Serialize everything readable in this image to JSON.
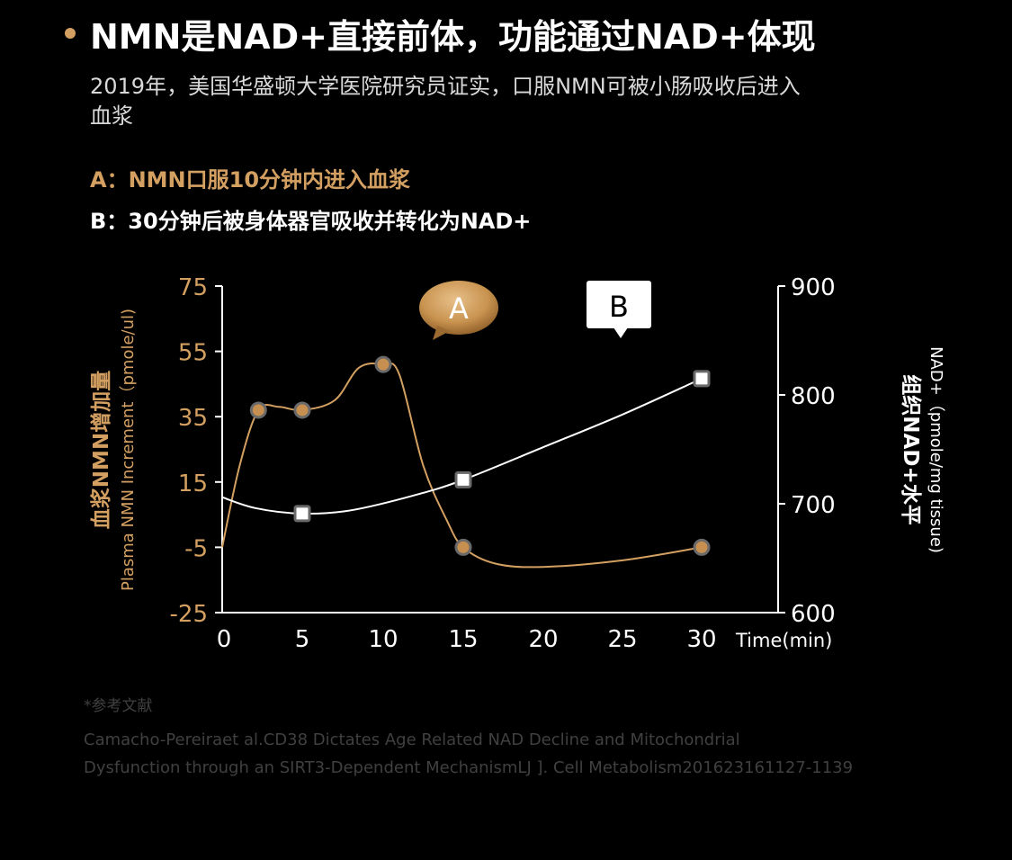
{
  "header": {
    "title": "NMN是NAD+直接前体，功能通过NAD+体现",
    "intro_line1": "2019年，美国华盛顿大学医院研究员证实，口服NMN可被小肠吸收后进入",
    "intro_line2": "血浆"
  },
  "notes": {
    "a": "A：NMN口服10分钟内进入血浆",
    "b": "B：30分钟后被身体器官吸收并转化为NAD+"
  },
  "chart_data": {
    "type": "line",
    "x_axis": {
      "label": "Time(min)",
      "ticks": [
        "0",
        "5",
        "10",
        "15",
        "20",
        "25",
        "30"
      ],
      "range": [
        0,
        33
      ]
    },
    "y_left": {
      "label_cn": "血浆NMN增加量",
      "label_en": "Plasma NMN Increment（pmole/ul)",
      "ticks": [
        "75",
        "55",
        "35",
        "15",
        "-5",
        "-25"
      ],
      "range": [
        -25,
        75
      ]
    },
    "y_right": {
      "label_cn": "组织NAD+水平",
      "label_en": "NAD+（pmole/mg tissue)",
      "ticks": [
        "900",
        "800",
        "700",
        "600"
      ],
      "range": [
        600,
        900
      ]
    },
    "series": [
      {
        "axis": "left",
        "marker": "circle",
        "points": [
          [
            2.2,
            37
          ],
          [
            5,
            37
          ],
          [
            10,
            51
          ],
          [
            15,
            -5
          ],
          [
            30,
            -5
          ]
        ],
        "curve": [
          [
            0,
            -5
          ],
          [
            1,
            20
          ],
          [
            2.2,
            37
          ],
          [
            3.5,
            38
          ],
          [
            5,
            37
          ],
          [
            7,
            40
          ],
          [
            8.5,
            50
          ],
          [
            10,
            51
          ],
          [
            11,
            48
          ],
          [
            12.5,
            20
          ],
          [
            14,
            3
          ],
          [
            15,
            -5
          ],
          [
            17,
            -10
          ],
          [
            20,
            -11
          ],
          [
            25,
            -9
          ],
          [
            30,
            -5
          ]
        ]
      },
      {
        "axis": "right",
        "marker": "square",
        "points": [
          [
            5,
            691
          ],
          [
            15,
            722
          ],
          [
            30,
            815
          ]
        ],
        "curve": [
          [
            0,
            706
          ],
          [
            2,
            696
          ],
          [
            5,
            691
          ],
          [
            8,
            694
          ],
          [
            12,
            708
          ],
          [
            15,
            722
          ],
          [
            20,
            752
          ],
          [
            25,
            782
          ],
          [
            30,
            815
          ]
        ]
      }
    ],
    "callouts": [
      {
        "label": "A",
        "style": "bubble-gold"
      },
      {
        "label": "B",
        "style": "box-white"
      }
    ]
  },
  "references": {
    "title": "*参考文献",
    "line1": "Camacho-Pereiraet al.CD38 Dictates Age Related NAD Decline and Mitochondrial",
    "line2": "Dysfunction through an SIRT3-Dependent MechanismLJ ]. Cell Metabolism201623161127-1139"
  },
  "colors": {
    "accent": "#d4a062",
    "series_left": "#d4a062",
    "series_right": "#ffffff",
    "text": "#ffffff",
    "muted": "#404040",
    "background": "#000000"
  }
}
